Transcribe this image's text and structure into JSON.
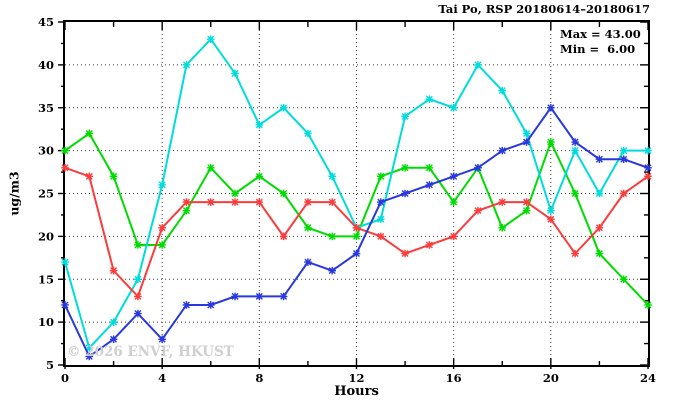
{
  "title": "Tai Po, RSP 20180614–20180617",
  "stats": {
    "max_label": "Max = 43.00",
    "min_label": "Min =  6.00"
  },
  "watermark": "© 2026 ENVF, HKUST",
  "chart_data": {
    "type": "line",
    "title": "Tai Po, RSP 20180614–20180617",
    "xlabel": "Hours",
    "ylabel": "ug/m3",
    "xlim": [
      0,
      24
    ],
    "ylim": [
      5,
      45
    ],
    "grid": {
      "x_lines": [
        4,
        8,
        12,
        16,
        20
      ],
      "y_lines": [
        10,
        15,
        20,
        25,
        30,
        35,
        40
      ]
    },
    "x_major_ticks": [
      0,
      4,
      8,
      12,
      16,
      20,
      24
    ],
    "x_tick_labels": [
      "0",
      "4",
      "8",
      "12",
      "16",
      "20",
      "24"
    ],
    "x_minor_step": 2,
    "y_major_ticks": [
      5,
      10,
      15,
      20,
      25,
      30,
      35,
      40,
      45
    ],
    "y_tick_labels": [
      "5",
      "10",
      "15",
      "20",
      "25",
      "30",
      "35",
      "40",
      "45"
    ],
    "y_minor_step": 2.5,
    "legend_position": "none",
    "annotations": [
      "Max = 43.00",
      "Min =  6.00"
    ],
    "x": [
      0,
      1,
      2,
      3,
      4,
      5,
      6,
      7,
      8,
      9,
      10,
      11,
      12,
      13,
      14,
      15,
      16,
      17,
      18,
      19,
      20,
      21,
      22,
      23,
      24
    ],
    "series": [
      {
        "name": "green-series",
        "color": "#00dc00",
        "values": [
          30,
          32,
          27,
          19,
          19,
          23,
          28,
          25,
          27,
          25,
          21,
          20,
          20,
          27,
          28,
          28,
          24,
          28,
          21,
          23,
          31,
          25,
          18,
          15,
          12
        ]
      },
      {
        "name": "cyan-series",
        "color": "#00dcdc",
        "values": [
          17,
          7,
          10,
          15,
          26,
          40,
          43,
          39,
          33,
          35,
          32,
          27,
          21,
          22,
          34,
          36,
          35,
          40,
          37,
          32,
          23,
          30,
          25,
          30,
          30
        ]
      },
      {
        "name": "red-series",
        "color": "#fa3c3c",
        "values": [
          28,
          27,
          16,
          13,
          21,
          24,
          24,
          24,
          24,
          20,
          24,
          24,
          21,
          20,
          18,
          19,
          20,
          23,
          24,
          24,
          22,
          18,
          21,
          25,
          27
        ]
      },
      {
        "name": "blue-series",
        "color": "#2838dc",
        "values": [
          12,
          6,
          8,
          11,
          8,
          12,
          12,
          13,
          13,
          13,
          17,
          16,
          18,
          24,
          25,
          26,
          27,
          28,
          30,
          31,
          35,
          31,
          29,
          29,
          28
        ]
      }
    ]
  }
}
